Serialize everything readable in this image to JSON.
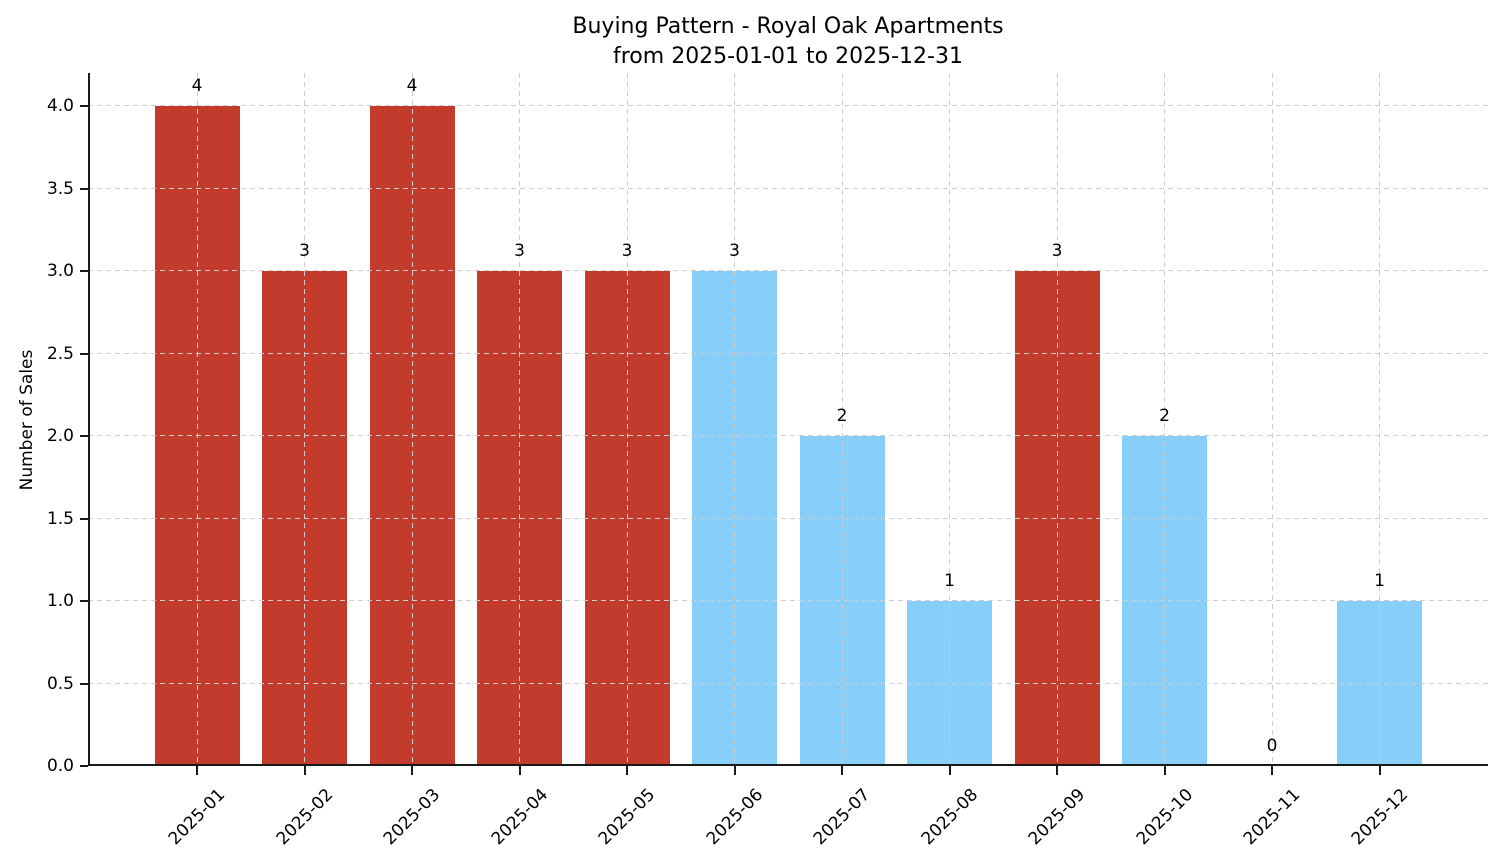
{
  "chart_data": {
    "type": "bar",
    "title_line1": "Buying Pattern - Royal Oak Apartments",
    "title_line2": "from 2025-01-01 to 2025-12-31",
    "xlabel": "",
    "ylabel": "Number of Sales",
    "categories": [
      "2025-01",
      "2025-02",
      "2025-03",
      "2025-04",
      "2025-05",
      "2025-06",
      "2025-07",
      "2025-08",
      "2025-09",
      "2025-10",
      "2025-11",
      "2025-12"
    ],
    "values": [
      4,
      3,
      4,
      3,
      3,
      3,
      2,
      1,
      3,
      2,
      0,
      1
    ],
    "value_labels": [
      "4",
      "3",
      "4",
      "3",
      "3",
      "3",
      "2",
      "1",
      "3",
      "2",
      "0",
      "1"
    ],
    "bar_colors": [
      "#c23b2c",
      "#c23b2c",
      "#c23b2c",
      "#c23b2c",
      "#c23b2c",
      "#87cefa",
      "#87cefa",
      "#87cefa",
      "#c23b2c",
      "#87cefa",
      "#87cefa",
      "#87cefa"
    ],
    "y_ticks": [
      "0.0",
      "0.5",
      "1.0",
      "1.5",
      "2.0",
      "2.5",
      "3.0",
      "3.5",
      "4.0"
    ],
    "y_tick_values": [
      0,
      0.5,
      1,
      1.5,
      2,
      2.5,
      3,
      3.5,
      4
    ],
    "ylim": [
      0,
      4.2
    ],
    "x_tick_rotation": 45,
    "grid": "both-dashed",
    "legend": "none",
    "colors": {
      "red_bar": "#c23b2c",
      "blue_bar": "#87cefa",
      "grid": "#cdcdcd",
      "axis": "#1a1a1a",
      "text": "#000000",
      "background": "#ffffff"
    }
  }
}
